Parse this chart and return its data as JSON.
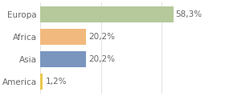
{
  "categories": [
    "Europa",
    "Africa",
    "Asia",
    "America"
  ],
  "values": [
    58.3,
    20.2,
    20.2,
    1.2
  ],
  "bar_colors": [
    "#aec eighteen#b5c99a",
    "#f2b97e",
    "#7a96bf",
    "#e8c84a"
  ],
  "bar_colors_fixed": [
    "#b5c99a",
    "#f2b97e",
    "#7a96bf",
    "#e8c84a"
  ],
  "labels": [
    "58,3%",
    "20,2%",
    "20,2%",
    "1,2%"
  ],
  "xlim": [
    0,
    100
  ],
  "background_color": "#ffffff",
  "text_color": "#666666",
  "grid_color": "#dddddd",
  "bar_height": 0.72,
  "label_fontsize": 7.5,
  "tick_fontsize": 7.5,
  "figsize": [
    2.8,
    1.2
  ],
  "dpi": 100
}
